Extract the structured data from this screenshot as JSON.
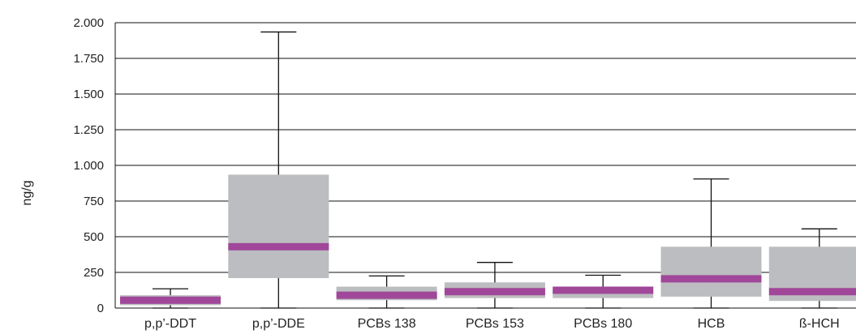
{
  "chart_data": {
    "type": "boxplot",
    "ylabel": "ng/g",
    "ylim": [
      0,
      2000
    ],
    "yticks": [
      0,
      250,
      500,
      750,
      1000,
      1250,
      1500,
      1750,
      2000
    ],
    "ytick_labels": [
      "0",
      "250",
      "500",
      "750",
      "1.000",
      "1.250",
      "1.500",
      "1.750",
      "2.000"
    ],
    "grid": true,
    "categories": [
      "p,p’-DDT",
      "p,p’-DDE",
      "PCBs 138",
      "PCBs 153",
      "PCBs 180",
      "HCB",
      "ß-HCH"
    ],
    "boxes": [
      {
        "min": 0,
        "q1": 20,
        "median": 55,
        "q3": 90,
        "max": 135
      },
      {
        "min": 0,
        "q1": 210,
        "median": 430,
        "q3": 935,
        "max": 1935
      },
      {
        "min": 0,
        "q1": 55,
        "median": 90,
        "q3": 150,
        "max": 225
      },
      {
        "min": 0,
        "q1": 70,
        "median": 115,
        "q3": 180,
        "max": 320
      },
      {
        "min": 0,
        "q1": 70,
        "median": 125,
        "q3": 130,
        "max": 230
      },
      {
        "min": 0,
        "q1": 80,
        "median": 205,
        "q3": 430,
        "max": 905
      },
      {
        "min": 0,
        "q1": 50,
        "median": 115,
        "q3": 430,
        "max": 555
      }
    ],
    "colors": {
      "box": "#bcbdc0",
      "median": "#a0479a",
      "whisker": "#111111",
      "grid": "#111111"
    }
  }
}
